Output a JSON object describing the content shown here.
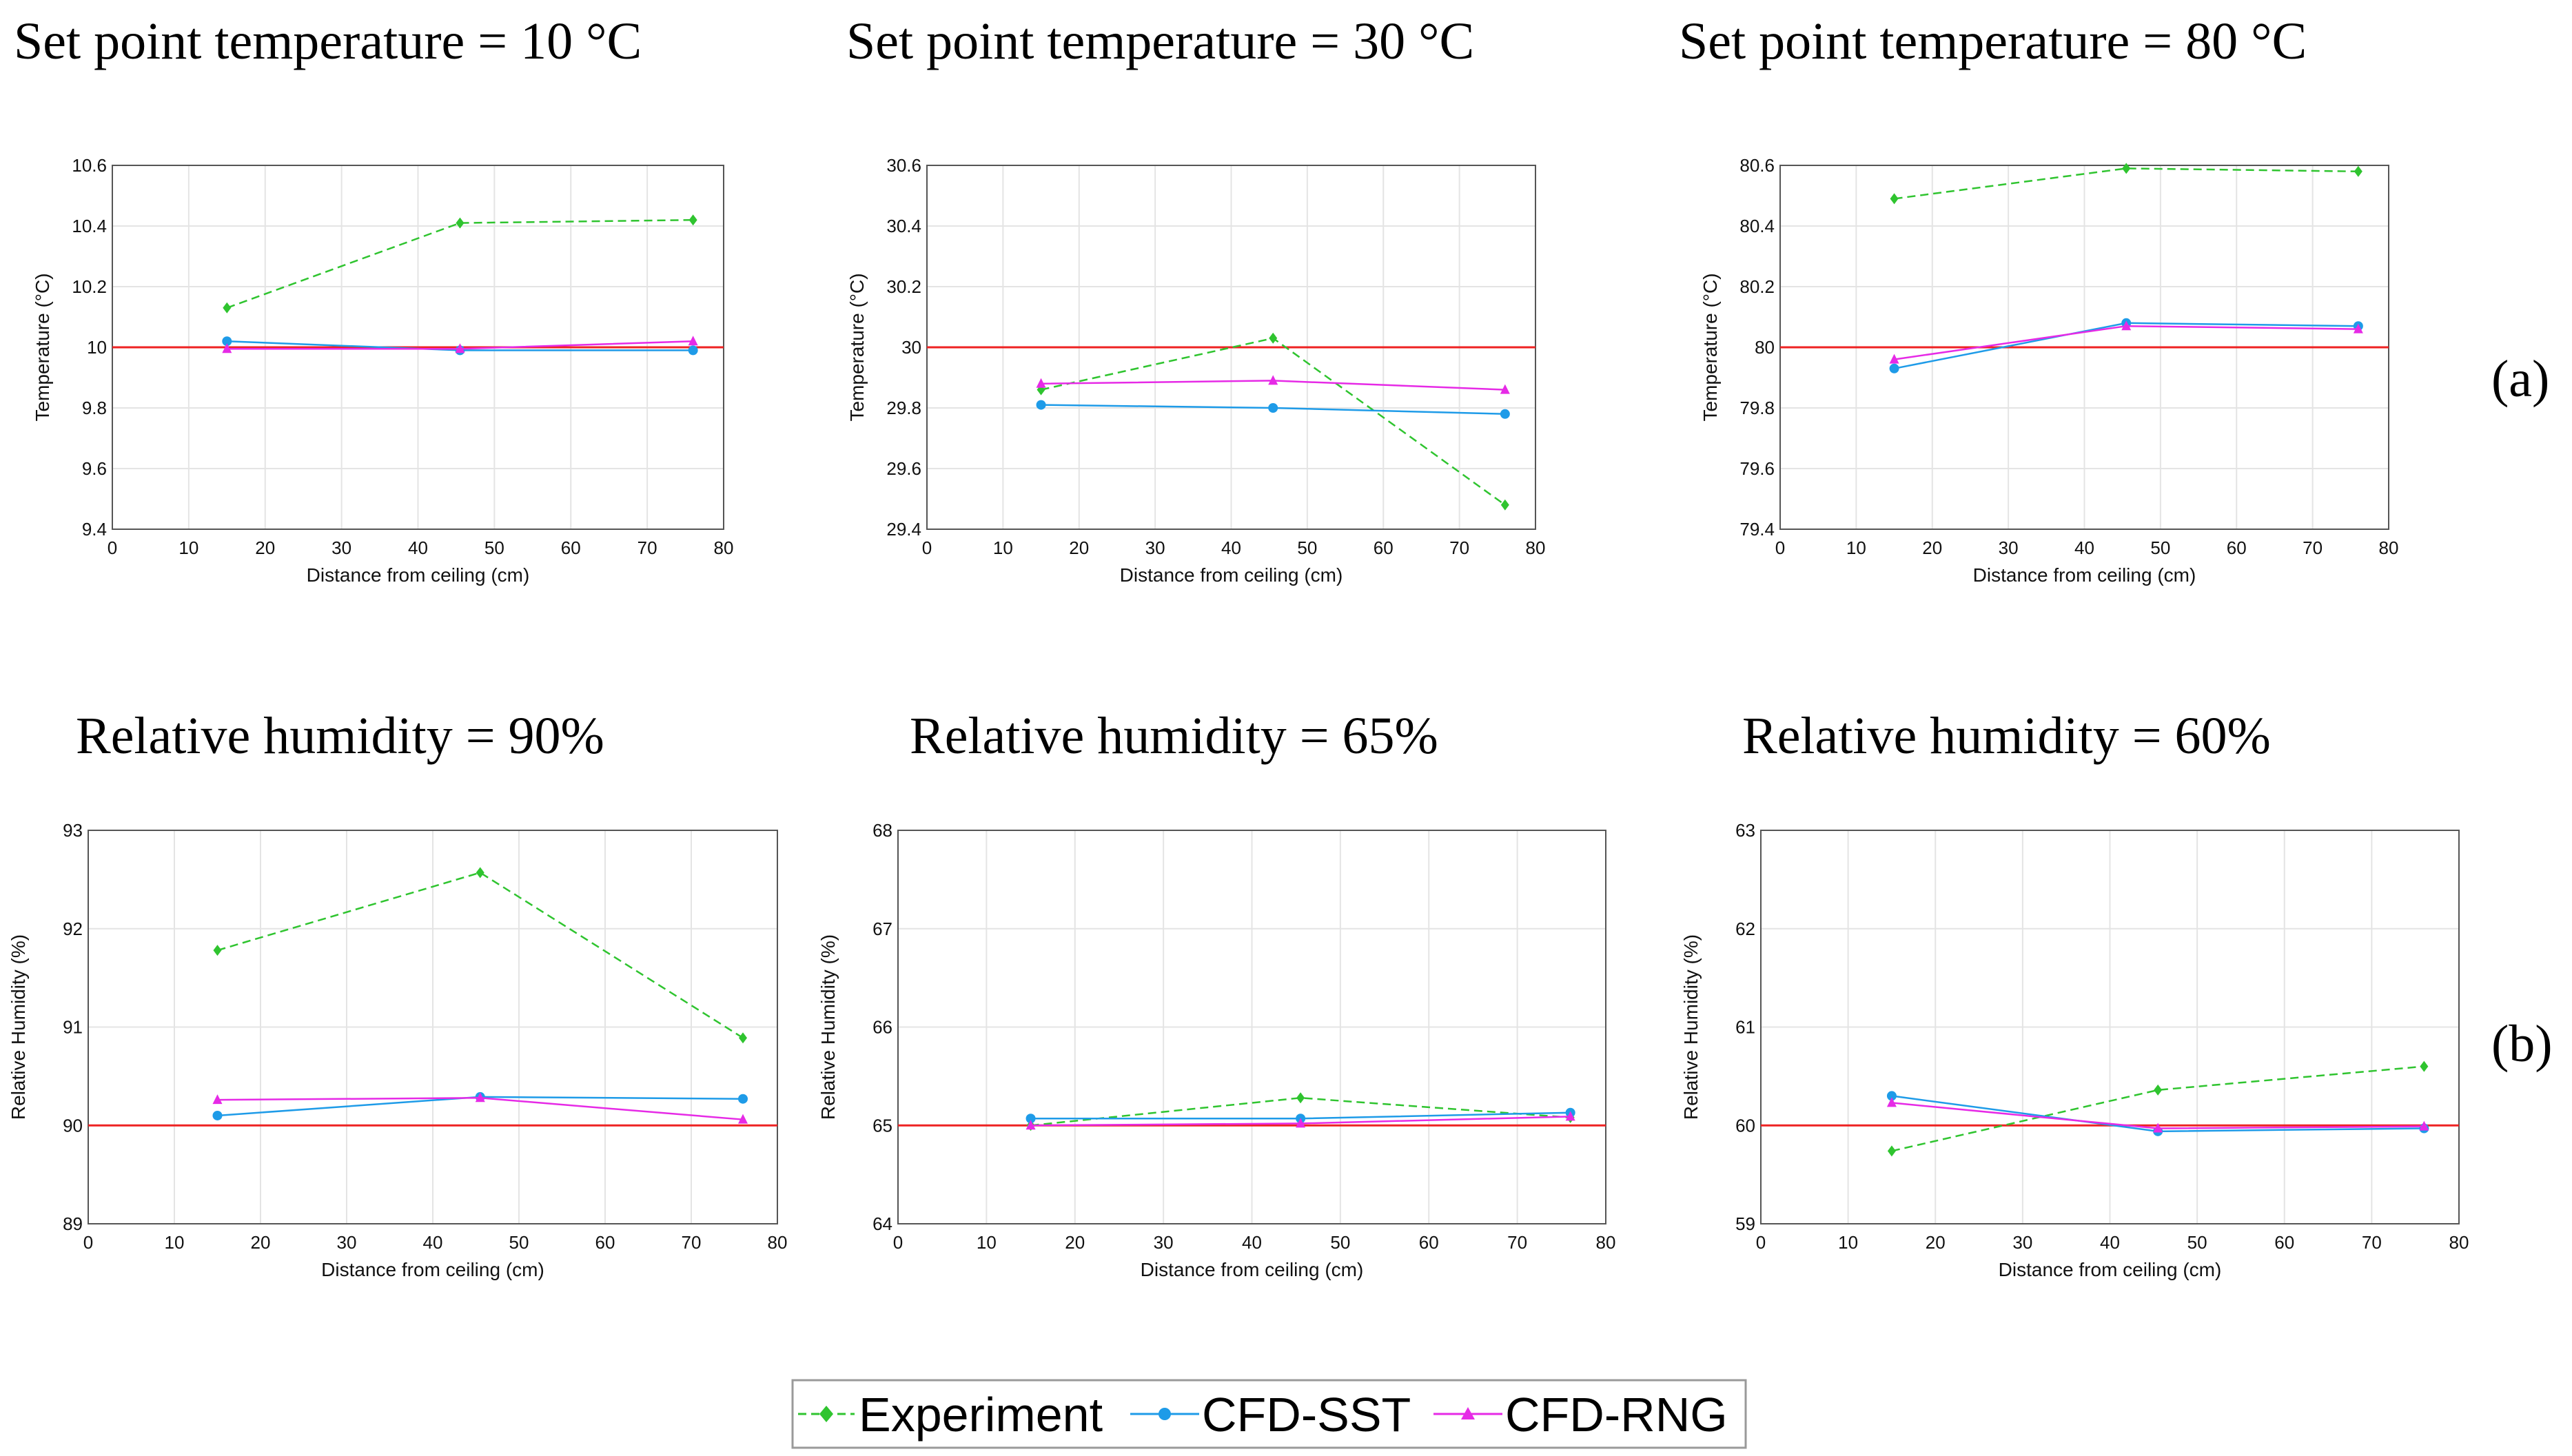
{
  "colors": {
    "experiment": "#2fc42f",
    "cfd_sst": "#1e9be8",
    "cfd_rng": "#e62ae6",
    "setpoint": "#ee2222"
  },
  "side_labels": {
    "a": "(a)",
    "b": "(b)"
  },
  "legend": {
    "experiment": "Experiment",
    "cfd_sst": "CFD-SST",
    "cfd_rng": "CFD-RNG"
  },
  "chart_data": [
    {
      "type": "line",
      "title": "Set point temperature = 10 °C",
      "xlabel": "Distance from ceiling (cm)",
      "ylabel": "Temperature (°C)",
      "xlim": [
        0,
        80
      ],
      "ylim": [
        9.4,
        10.6
      ],
      "xticks": [
        "0",
        "10",
        "20",
        "30",
        "40",
        "50",
        "60",
        "70",
        "80"
      ],
      "yticks": [
        "9.4",
        "9.6",
        "9.8",
        "10",
        "10.2",
        "10.4",
        "10.6"
      ],
      "setpoint": 10,
      "x": [
        15,
        45.5,
        76
      ],
      "series": [
        {
          "name": "Experiment",
          "values": [
            10.13,
            10.41,
            10.42
          ]
        },
        {
          "name": "CFD-SST",
          "values": [
            10.02,
            9.99,
            9.99
          ]
        },
        {
          "name": "CFD-RNG",
          "values": [
            9.995,
            9.995,
            10.02
          ]
        }
      ]
    },
    {
      "type": "line",
      "title": "Set point temperature = 30 °C",
      "xlabel": "Distance from ceiling (cm)",
      "ylabel": "Temperature (°C)",
      "xlim": [
        0,
        80
      ],
      "ylim": [
        29.4,
        30.6
      ],
      "xticks": [
        "0",
        "10",
        "20",
        "30",
        "40",
        "50",
        "60",
        "70",
        "80"
      ],
      "yticks": [
        "29.4",
        "29.6",
        "29.8",
        "30",
        "30.2",
        "30.4",
        "30.6"
      ],
      "setpoint": 30,
      "x": [
        15,
        45.5,
        76
      ],
      "series": [
        {
          "name": "Experiment",
          "values": [
            29.86,
            30.03,
            29.48
          ]
        },
        {
          "name": "CFD-SST",
          "values": [
            29.81,
            29.8,
            29.78
          ]
        },
        {
          "name": "CFD-RNG",
          "values": [
            29.88,
            29.89,
            29.86
          ]
        }
      ]
    },
    {
      "type": "line",
      "title": "Set point temperature = 80 °C",
      "xlabel": "Distance from ceiling (cm)",
      "ylabel": "Temperature (°C)",
      "xlim": [
        0,
        80
      ],
      "ylim": [
        79.4,
        80.6
      ],
      "xticks": [
        "0",
        "10",
        "20",
        "30",
        "40",
        "50",
        "60",
        "70",
        "80"
      ],
      "yticks": [
        "79.4",
        "79.6",
        "79.8",
        "80",
        "80.2",
        "80.4",
        "80.6"
      ],
      "setpoint": 80,
      "x": [
        15,
        45.5,
        76
      ],
      "series": [
        {
          "name": "Experiment",
          "values": [
            80.49,
            80.59,
            80.58
          ]
        },
        {
          "name": "CFD-SST",
          "values": [
            79.93,
            80.08,
            80.07
          ]
        },
        {
          "name": "CFD-RNG",
          "values": [
            79.96,
            80.07,
            80.06
          ]
        }
      ]
    },
    {
      "type": "line",
      "title": "Relative humidity = 90%",
      "xlabel": "Distance from ceiling (cm)",
      "ylabel": "Relative Humidity (%)",
      "xlim": [
        0,
        80
      ],
      "ylim": [
        89,
        93
      ],
      "xticks": [
        "0",
        "10",
        "20",
        "30",
        "40",
        "50",
        "60",
        "70",
        "80"
      ],
      "yticks": [
        "89",
        "90",
        "91",
        "92",
        "93"
      ],
      "setpoint": 90,
      "x": [
        15,
        45.5,
        76
      ],
      "series": [
        {
          "name": "Experiment",
          "values": [
            91.78,
            92.57,
            90.89
          ]
        },
        {
          "name": "CFD-SST",
          "values": [
            90.1,
            90.29,
            90.27
          ]
        },
        {
          "name": "CFD-RNG",
          "values": [
            90.26,
            90.28,
            90.06
          ]
        }
      ]
    },
    {
      "type": "line",
      "title": "Relative humidity = 65%",
      "xlabel": "Distance from ceiling (cm)",
      "ylabel": "Relative Humidity (%)",
      "xlim": [
        0,
        80
      ],
      "ylim": [
        64,
        68
      ],
      "xticks": [
        "0",
        "10",
        "20",
        "30",
        "40",
        "50",
        "60",
        "70",
        "80"
      ],
      "yticks": [
        "64",
        "65",
        "66",
        "67",
        "68"
      ],
      "setpoint": 65,
      "x": [
        15,
        45.5,
        76
      ],
      "series": [
        {
          "name": "Experiment",
          "values": [
            65.0,
            65.28,
            65.08
          ]
        },
        {
          "name": "CFD-SST",
          "values": [
            65.07,
            65.07,
            65.13
          ]
        },
        {
          "name": "CFD-RNG",
          "values": [
            65.0,
            65.02,
            65.09
          ]
        }
      ]
    },
    {
      "type": "line",
      "title": "Relative humidity = 60%",
      "xlabel": "Distance from ceiling (cm)",
      "ylabel": "Relative Humidity (%)",
      "xlim": [
        0,
        80
      ],
      "ylim": [
        59,
        63
      ],
      "xticks": [
        "0",
        "10",
        "20",
        "30",
        "40",
        "50",
        "60",
        "70",
        "80"
      ],
      "yticks": [
        "59",
        "60",
        "61",
        "62",
        "63"
      ],
      "setpoint": 60,
      "x": [
        15,
        45.5,
        76
      ],
      "series": [
        {
          "name": "Experiment",
          "values": [
            59.74,
            60.36,
            60.6
          ]
        },
        {
          "name": "CFD-SST",
          "values": [
            60.3,
            59.94,
            59.97
          ]
        },
        {
          "name": "CFD-RNG",
          "values": [
            60.23,
            59.97,
            59.99
          ]
        }
      ]
    }
  ]
}
